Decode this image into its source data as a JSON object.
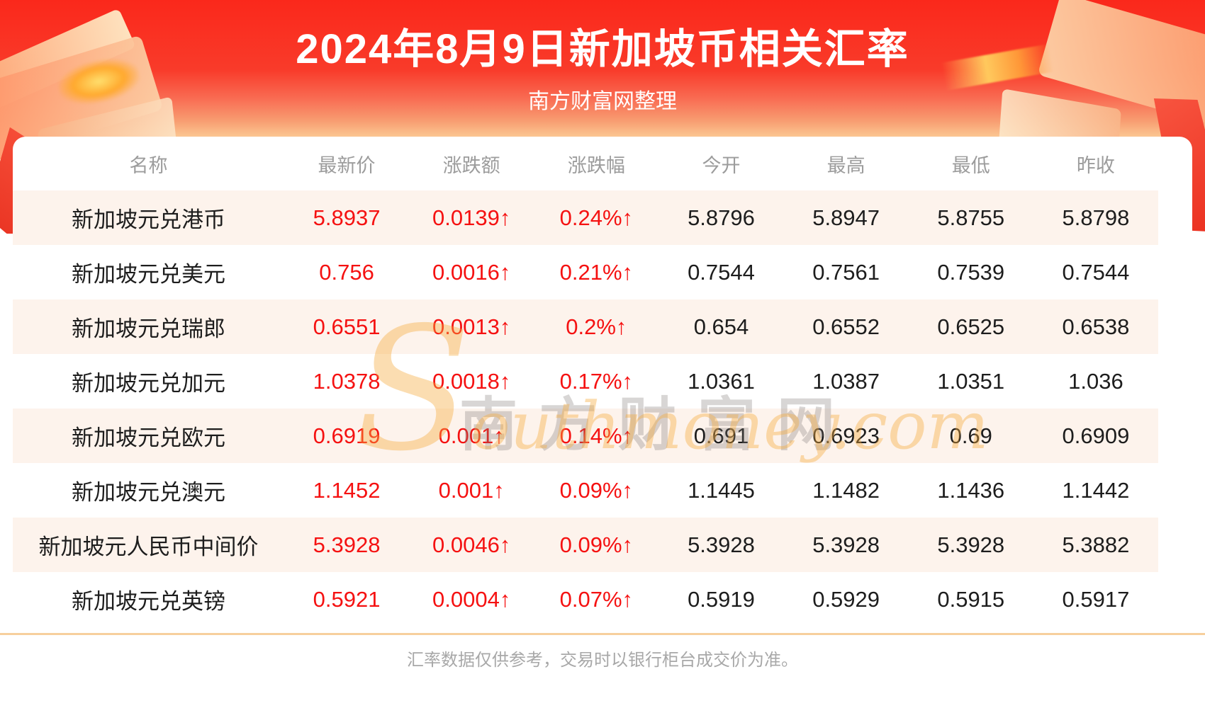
{
  "page": {
    "title": "2024年8月9日新加坡币相关汇率",
    "subtitle": "南方财富网整理",
    "footer_note": "汇率数据仅供参考，交易时以银行柜台成交价为准。"
  },
  "watermark": {
    "initial": "S",
    "script_text": "outhmoney.com",
    "cn_text": "南方财富网"
  },
  "colors": {
    "accent_red": "#fa281b",
    "value_red": "#f51111",
    "row_alt_bg": "#fdf3ec",
    "divider": "#f7cf9d",
    "header_text": "#9c9c9c",
    "body_text": "#1d1d1d",
    "footer_text": "#a8a8a8"
  },
  "table": {
    "columns": [
      "名称",
      "最新价",
      "涨跌额",
      "涨跌幅",
      "今开",
      "最高",
      "最低",
      "昨收"
    ],
    "red_keys": [
      "latest",
      "change",
      "change_pct"
    ],
    "rows": [
      {
        "name": "新加坡元兑港币",
        "latest": "5.8937",
        "change": "0.0139↑",
        "change_pct": "0.24%↑",
        "open": "5.8796",
        "high": "5.8947",
        "low": "5.8755",
        "prev_close": "5.8798"
      },
      {
        "name": "新加坡元兑美元",
        "latest": "0.756",
        "change": "0.0016↑",
        "change_pct": "0.21%↑",
        "open": "0.7544",
        "high": "0.7561",
        "low": "0.7539",
        "prev_close": "0.7544"
      },
      {
        "name": "新加坡元兑瑞郎",
        "latest": "0.6551",
        "change": "0.0013↑",
        "change_pct": "0.2%↑",
        "open": "0.654",
        "high": "0.6552",
        "low": "0.6525",
        "prev_close": "0.6538"
      },
      {
        "name": "新加坡元兑加元",
        "latest": "1.0378",
        "change": "0.0018↑",
        "change_pct": "0.17%↑",
        "open": "1.0361",
        "high": "1.0387",
        "low": "1.0351",
        "prev_close": "1.036"
      },
      {
        "name": "新加坡元兑欧元",
        "latest": "0.6919",
        "change": "0.001↑",
        "change_pct": "0.14%↑",
        "open": "0.691",
        "high": "0.6923",
        "low": "0.69",
        "prev_close": "0.6909"
      },
      {
        "name": "新加坡元兑澳元",
        "latest": "1.1452",
        "change": "0.001↑",
        "change_pct": "0.09%↑",
        "open": "1.1445",
        "high": "1.1482",
        "low": "1.1436",
        "prev_close": "1.1442"
      },
      {
        "name": "新加坡元人民币中间价",
        "latest": "5.3928",
        "change": "0.0046↑",
        "change_pct": "0.09%↑",
        "open": "5.3928",
        "high": "5.3928",
        "low": "5.3928",
        "prev_close": "5.3882"
      },
      {
        "name": "新加坡元兑英镑",
        "latest": "0.5921",
        "change": "0.0004↑",
        "change_pct": "0.07%↑",
        "open": "0.5919",
        "high": "0.5929",
        "low": "0.5915",
        "prev_close": "0.5917"
      }
    ]
  }
}
